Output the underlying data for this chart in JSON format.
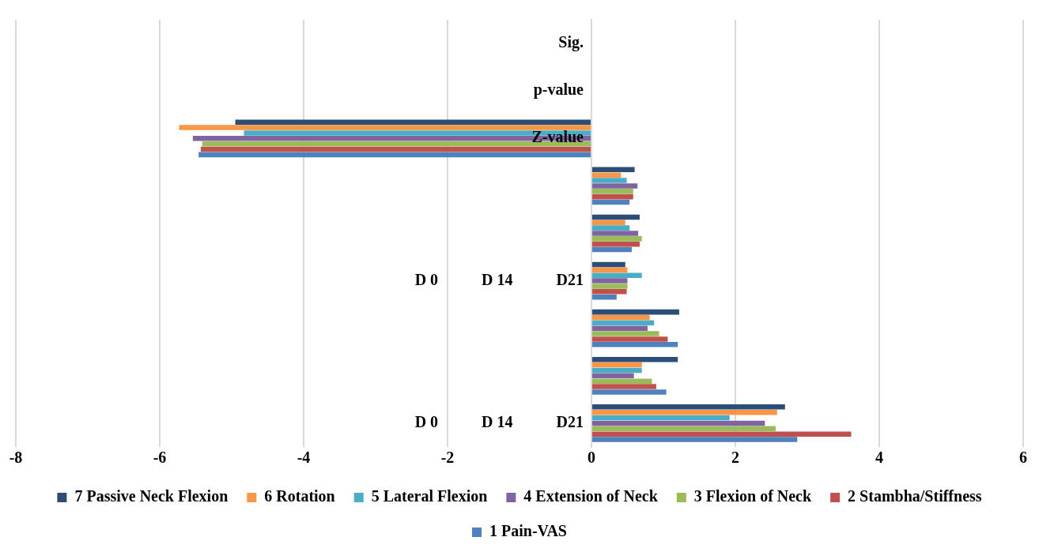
{
  "chart_data": {
    "type": "bar",
    "orientation": "horizontal",
    "categories": [
      "Sig.",
      "p-value",
      "Z-value",
      null,
      null,
      "D 0           D 14           D21",
      null,
      null,
      "D 0           D 14           D21"
    ],
    "series": [
      {
        "name": "7 Passive Neck Flexion",
        "color": "#2c4d75",
        "values": [
          null,
          null,
          -4.95,
          0.6,
          0.67,
          0.47,
          1.22,
          1.2,
          2.69
        ]
      },
      {
        "name": "6 Rotation",
        "color": "#f79646",
        "values": [
          null,
          null,
          -5.73,
          0.41,
          0.47,
          0.5,
          0.81,
          0.7,
          2.58
        ]
      },
      {
        "name": "5 Lateral Flexion",
        "color": "#4bacc6",
        "values": [
          null,
          null,
          -4.83,
          0.49,
          0.53,
          0.7,
          0.87,
          0.7,
          1.92
        ]
      },
      {
        "name": "4 Extension of Neck",
        "color": "#8064a2",
        "values": [
          null,
          null,
          -5.54,
          0.64,
          0.65,
          0.5,
          0.78,
          0.59,
          2.41
        ]
      },
      {
        "name": "3 Flexion of Neck",
        "color": "#9bbb59",
        "values": [
          null,
          null,
          -5.41,
          0.58,
          0.7,
          0.5,
          0.94,
          0.84,
          2.56
        ]
      },
      {
        "name": "2 Stambha/Stiffness",
        "color": "#c0504d",
        "values": [
          null,
          null,
          -5.43,
          0.58,
          0.67,
          0.49,
          1.06,
          0.9,
          3.61
        ]
      },
      {
        "name": "1 Pain-VAS",
        "color": "#4f81bd",
        "values": [
          null,
          null,
          -5.46,
          0.53,
          0.56,
          0.35,
          1.2,
          1.04,
          2.86
        ]
      }
    ],
    "xlim": [
      -8,
      6
    ],
    "xticks": [
      -8,
      -6,
      -4,
      -2,
      0,
      2,
      4,
      6
    ],
    "grid": "x",
    "legend": "bottom"
  }
}
